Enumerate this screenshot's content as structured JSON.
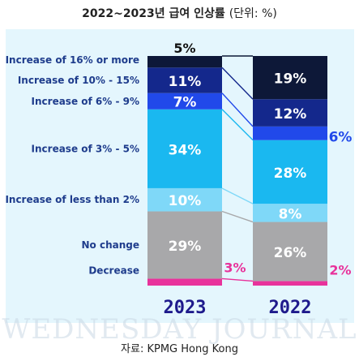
{
  "title": "2022~2023년 급여 인상률",
  "title_unit": "(단위: %)",
  "source": "자료: KPMG Hong Kong",
  "watermark": "WEDNESDAY JOURNAL",
  "chart_data": {
    "type": "bar",
    "stacked": true,
    "normalized": true,
    "categories": [
      "2023",
      "2022"
    ],
    "series": [
      {
        "name": "Decrease",
        "values": [
          3,
          2
        ],
        "labels": [
          "3%",
          "2%"
        ],
        "color": "#e8329b",
        "label_color": "#e8329b",
        "label_outside": true
      },
      {
        "name": "No change",
        "values": [
          29,
          26
        ],
        "labels": [
          "29%",
          "26%"
        ],
        "color": "#a8a8aa",
        "label_color": "#ffffff"
      },
      {
        "name": "Increase of less than 2%",
        "values": [
          10,
          8
        ],
        "labels": [
          "10%",
          "8%"
        ],
        "color": "#7fd8f8",
        "label_color": "#ffffff"
      },
      {
        "name": "Increase of 3% - 5%",
        "values": [
          34,
          28
        ],
        "labels": [
          "34%",
          "28%"
        ],
        "color": "#1ab8f0",
        "label_color": "#ffffff"
      },
      {
        "name": "Increase of 6% - 9%",
        "values": [
          7,
          6
        ],
        "labels": [
          "7%",
          "6%"
        ],
        "color": "#2149ea",
        "label_color": "#ffffff",
        "label_outside_2022": true,
        "outside_color": "#2149ea"
      },
      {
        "name": "Increase of 10% - 15%",
        "values": [
          11,
          12
        ],
        "labels": [
          "11%",
          "12%"
        ],
        "color": "#14288c",
        "label_color": "#ffffff"
      },
      {
        "name": "Increase of 16% or more",
        "values": [
          5,
          19
        ],
        "labels": [
          "5%",
          "19%"
        ],
        "color": "#0d1838",
        "label_color": "#ffffff",
        "label_above_2023": true
      }
    ],
    "legend_position": "left",
    "category_color": "#1e1a8c",
    "legend_color": "#1e3c8c",
    "grid": false
  }
}
